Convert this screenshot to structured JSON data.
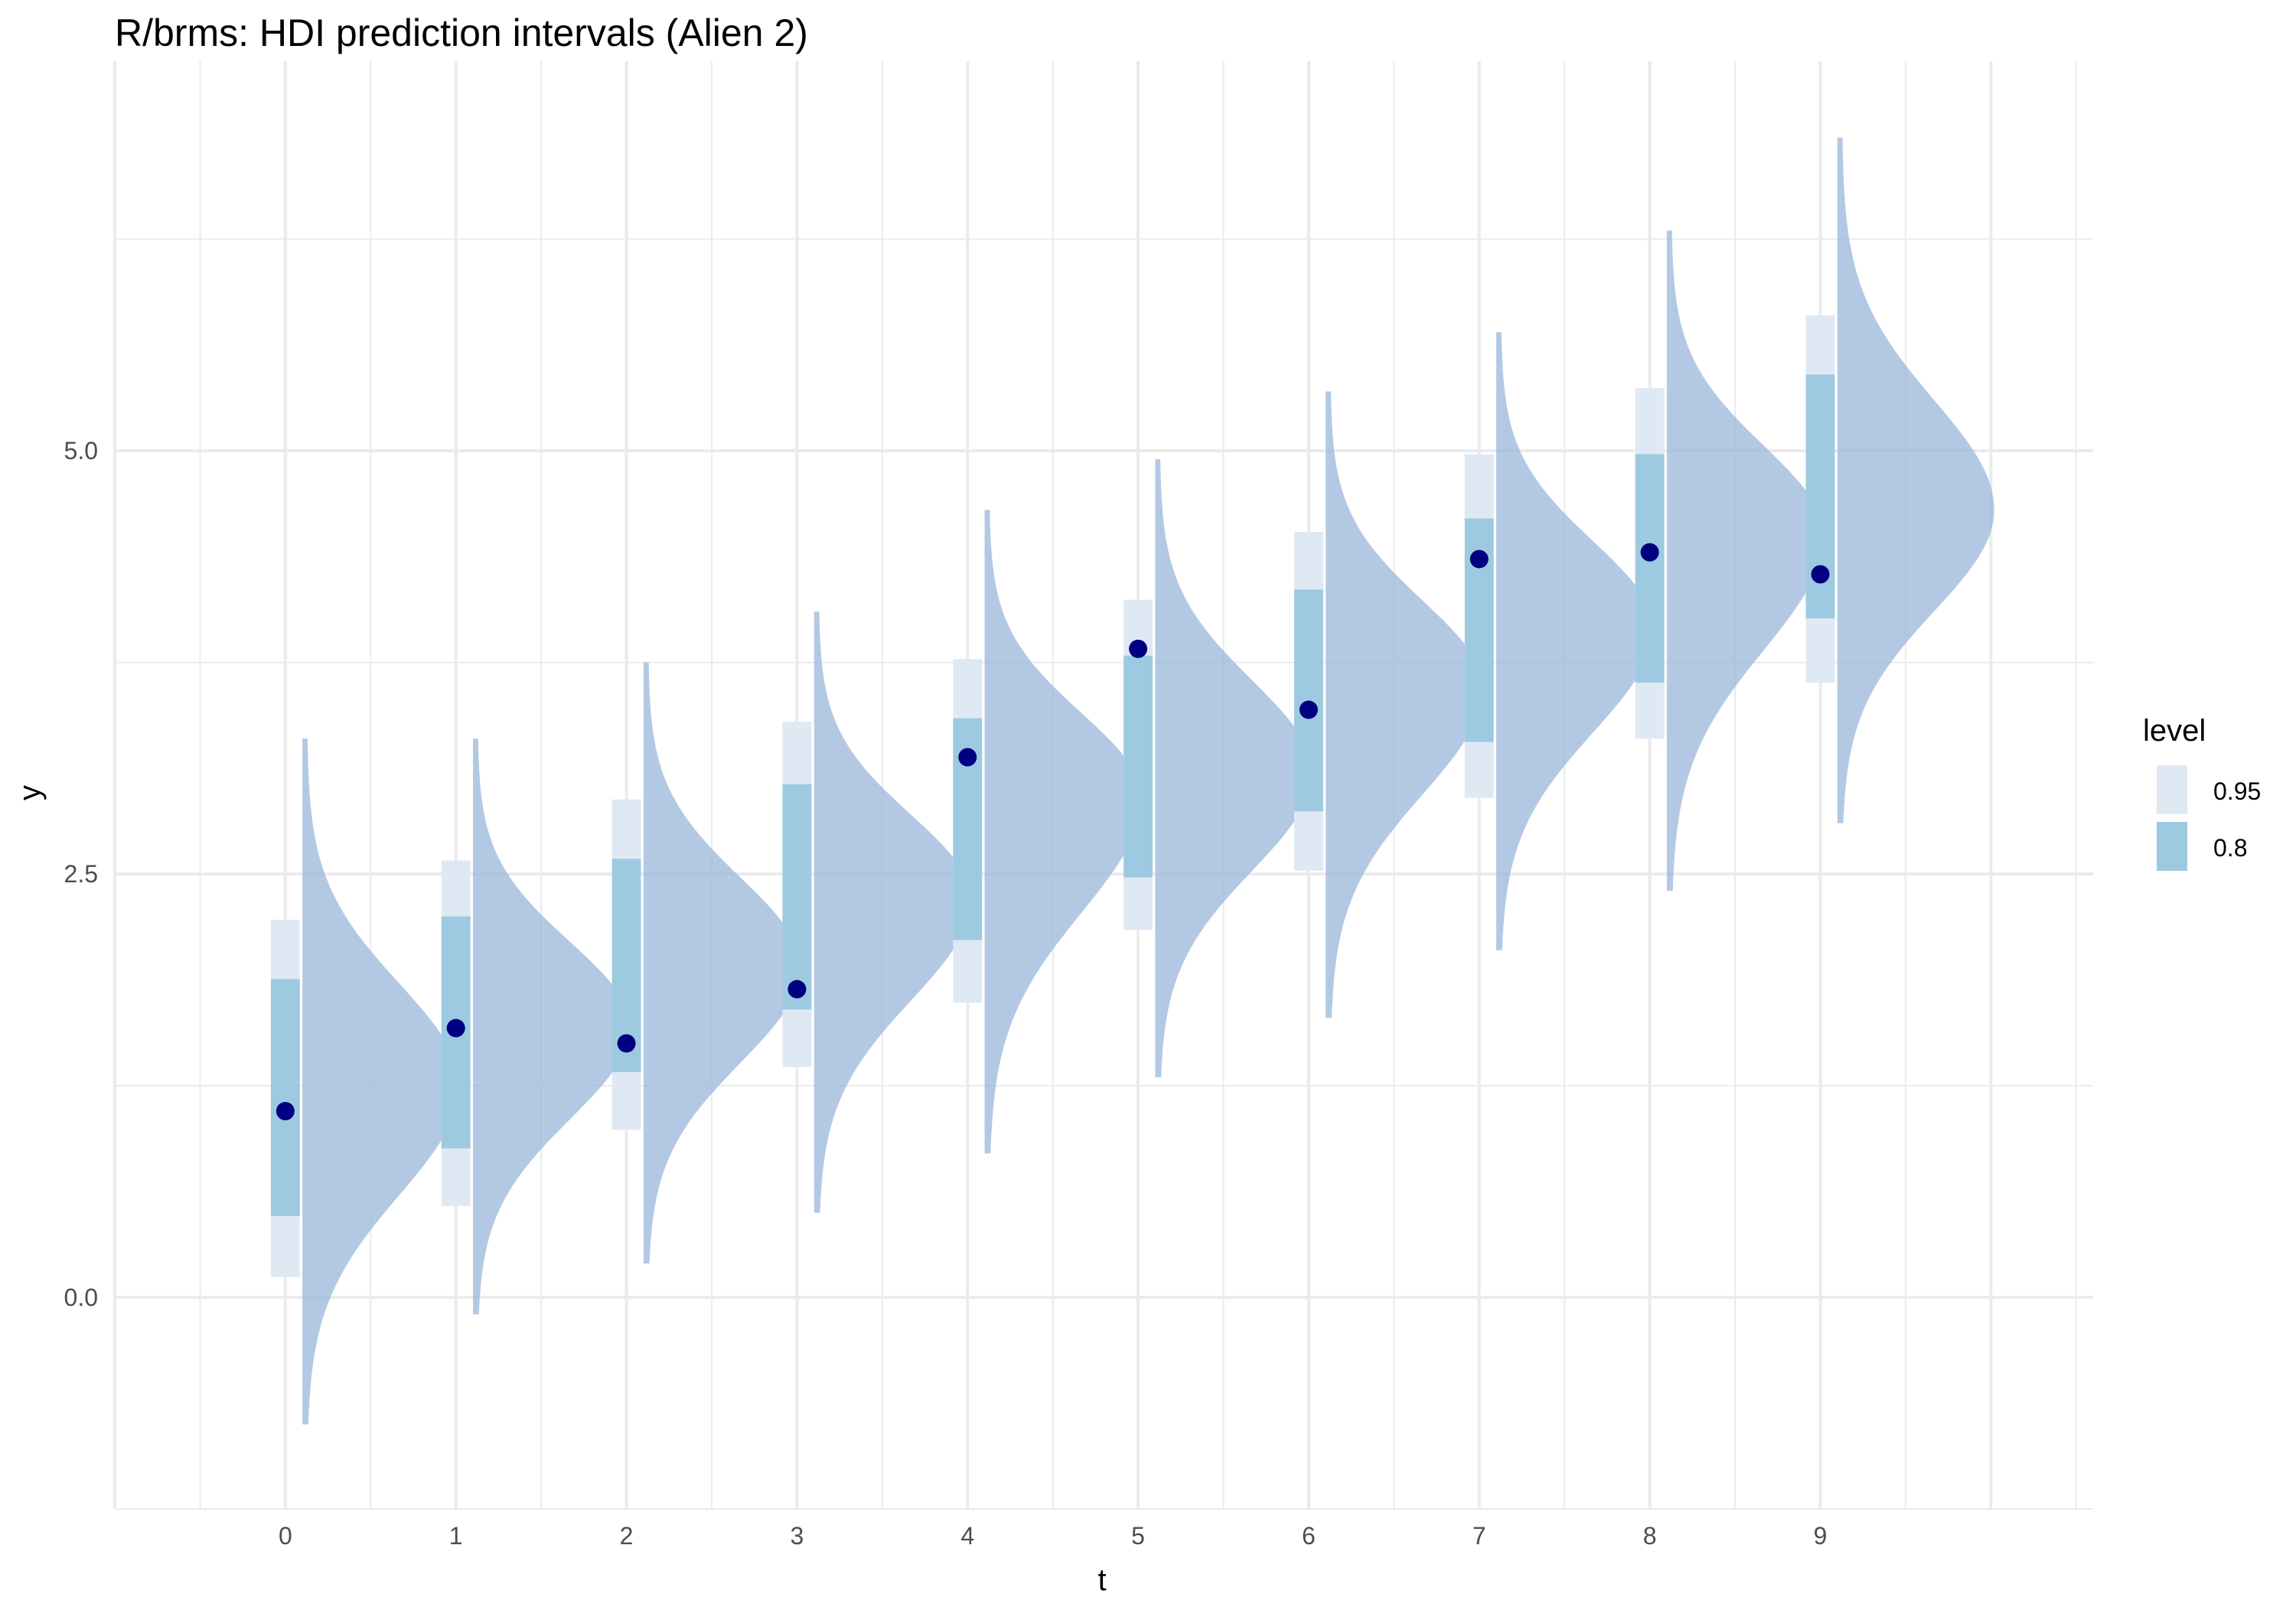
{
  "chart_data": {
    "type": "interval",
    "title": "R/brms: HDI prediction intervals (Alien 2)",
    "xlabel": "t",
    "ylabel": "y",
    "x_ticks": [
      "0",
      "1",
      "2",
      "3",
      "4",
      "5",
      "6",
      "7",
      "8",
      "9"
    ],
    "y_ticks": [
      {
        "value": 0.0,
        "label": "0.0"
      },
      {
        "value": 2.5,
        "label": "2.5"
      },
      {
        "value": 5.0,
        "label": "5.0"
      }
    ],
    "xlim": [
      -1,
      10.6
    ],
    "ylim": [
      -1.25,
      7.3
    ],
    "grid": true,
    "legend": {
      "title": "level",
      "position": "right",
      "entries": [
        {
          "label": "0.95",
          "color": "#dfe9f4"
        },
        {
          "label": "0.8",
          "color": "#9ecae1"
        }
      ]
    },
    "colors": {
      "interval_95": "#dfe9f4",
      "interval_80": "#9ecae1",
      "density": "#9ab7d9",
      "point": "#000080",
      "grid": "#ebebeb"
    },
    "series": [
      {
        "t": 0,
        "point": 1.1,
        "hdi95": [
          0.12,
          2.23
        ],
        "hdi80": [
          0.48,
          1.88
        ],
        "density": {
          "min": -0.75,
          "max": 3.3,
          "mode": 1.25
        }
      },
      {
        "t": 1,
        "point": 1.59,
        "hdi95": [
          0.54,
          2.58
        ],
        "hdi80": [
          0.88,
          2.25
        ],
        "density": {
          "min": -0.1,
          "max": 3.3,
          "mode": 1.6
        }
      },
      {
        "t": 2,
        "point": 1.5,
        "hdi95": [
          0.99,
          2.94
        ],
        "hdi80": [
          1.33,
          2.59
        ],
        "density": {
          "min": 0.2,
          "max": 3.75,
          "mode": 1.95
        }
      },
      {
        "t": 3,
        "point": 1.82,
        "hdi95": [
          1.36,
          3.4
        ],
        "hdi80": [
          1.7,
          3.03
        ],
        "density": {
          "min": 0.5,
          "max": 4.05,
          "mode": 2.35
        }
      },
      {
        "t": 4,
        "point": 3.19,
        "hdi95": [
          1.74,
          3.77
        ],
        "hdi80": [
          2.11,
          3.42
        ],
        "density": {
          "min": 0.85,
          "max": 4.65,
          "mode": 2.95
        }
      },
      {
        "t": 5,
        "point": 3.83,
        "hdi95": [
          2.17,
          4.12
        ],
        "hdi80": [
          2.48,
          3.79
        ],
        "density": {
          "min": 1.3,
          "max": 4.95,
          "mode": 3.1
        }
      },
      {
        "t": 6,
        "point": 3.47,
        "hdi95": [
          2.52,
          4.52
        ],
        "hdi80": [
          2.87,
          4.18
        ],
        "density": {
          "min": 1.65,
          "max": 5.35,
          "mode": 3.6
        }
      },
      {
        "t": 7,
        "point": 4.36,
        "hdi95": [
          2.95,
          4.98
        ],
        "hdi80": [
          3.28,
          4.6
        ],
        "density": {
          "min": 2.05,
          "max": 5.7,
          "mode": 3.95
        }
      },
      {
        "t": 8,
        "point": 4.4,
        "hdi95": [
          3.3,
          5.37
        ],
        "hdi80": [
          3.63,
          4.98
        ],
        "density": {
          "min": 2.4,
          "max": 6.3,
          "mode": 4.5
        }
      },
      {
        "t": 9,
        "point": 4.27,
        "hdi95": [
          3.63,
          5.8
        ],
        "hdi80": [
          4.01,
          5.45
        ],
        "density": {
          "min": 2.8,
          "max": 6.85,
          "mode": 4.65
        }
      }
    ]
  }
}
